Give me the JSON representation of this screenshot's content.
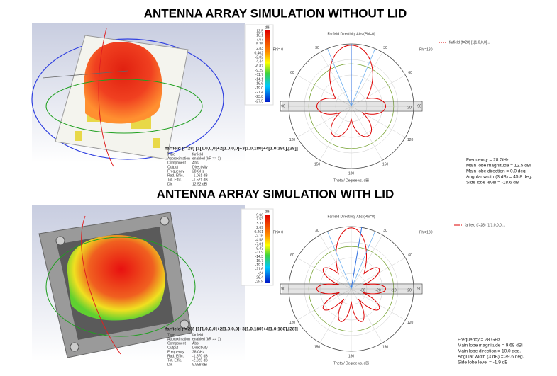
{
  "sections": [
    {
      "title": "ANTENNA ARRAY  SIMULATION WITHOUT LID",
      "colorbar": {
        "unit": "dBi",
        "values": [
          "12.5",
          "10.1",
          "7.67",
          "5.25",
          "2.83",
          "0.402",
          "-2.02",
          "-4.44",
          "-6.87",
          "-9.29",
          "-11.7",
          "-14.1",
          "-16.6",
          "-19.0",
          "-21.4",
          "-23.8",
          "-27.5"
        ]
      },
      "info": {
        "header": "farfield (f=28) [1[1.0,0,0]+2[1.0,0,0]+3[1.0,180]+4[1.0,180],[28]]",
        "rows": [
          [
            "Type",
            "farfield"
          ],
          [
            "Approximation",
            "enabled (kR >> 1)"
          ],
          [
            "Component",
            "Abs"
          ],
          [
            "Output",
            "Directivity"
          ],
          [
            "Frequency",
            "28 GHz"
          ],
          [
            "Rad. Effic.",
            "-1.061 dB"
          ],
          [
            "Tot. Effic.",
            "-1.521 dB"
          ],
          [
            "Dir.",
            "12.52 dBi"
          ]
        ]
      },
      "polar": {
        "title": "Farfield Directivity Abs (Phi=0)",
        "phi_left": "Phi= 0",
        "phi_right": "Phi=180",
        "theta_ticks_left": [
          30,
          60,
          90,
          120,
          150
        ],
        "theta_ticks_right": [
          30,
          60,
          90,
          120,
          150,
          180
        ],
        "radial_labels": [
          "20"
        ],
        "axis_label": "Theta / Degree vs. dBi"
      },
      "legend": "farfield (f=28) [1[1.0,0,0]...",
      "stats": [
        "Frequency = 28 GHz",
        "Main lobe magnitude =     12.5 dBi",
        "Main lobe direction =     0.0 deg.",
        "Angular width (3 dB) =    45.8 deg.",
        "Side lobe level =   -18.6 dB"
      ]
    },
    {
      "title": "ANTENNA ARRAY  SIMULATION WITH LID",
      "colorbar": {
        "unit": "dBi",
        "values": [
          "9.96",
          "7.53",
          "5.11",
          "2.69",
          "0.261",
          "-2.16",
          "-4.58",
          "-7.01",
          "-9.43",
          "-11.9",
          "-14.3",
          "-16.7",
          "-19.1",
          "-21.6",
          "-24",
          "-26.4",
          "-29.9"
        ]
      },
      "info": {
        "header": "farfield (f=28) [1[1.0,0,0]+2[1.0,0,0]+3[1.0,180]+4[1.0,180],[28]]",
        "rows": [
          [
            "Type",
            "farfield"
          ],
          [
            "Approximation",
            "enabled (kR >> 1)"
          ],
          [
            "Component",
            "Abs"
          ],
          [
            "Output",
            "Directivity"
          ],
          [
            "Frequency",
            "28 GHz"
          ],
          [
            "Rad. Effic.",
            "-1.870 dB"
          ],
          [
            "Tot. Effic.",
            "-2.025 dB"
          ],
          [
            "Dir.",
            "9.958 dBi"
          ]
        ]
      },
      "polar": {
        "title": "Farfield Directivity Abs (Phi=0)",
        "phi_left": "Phi= 0",
        "phi_right": "Phi=180",
        "theta_ticks_left": [
          30,
          60,
          90,
          120,
          150
        ],
        "theta_ticks_right": [
          30,
          60,
          90,
          120,
          150,
          180
        ],
        "radial_labels": [
          "-30",
          "-20",
          "-10",
          "20"
        ],
        "axis_label": "Theta / Degree vs. dBi"
      },
      "legend": "farfield (f=28) [1[1.0,0,0]...",
      "stats": [
        "Frequency = 28 GHz",
        "Main lobe magnitude =     9.68 dBi",
        "Main lobe direction =    10.0 deg.",
        "Angular width (3 dB) =    39.6 deg.",
        "Side lobe level =   -1.9 dB"
      ]
    }
  ]
}
